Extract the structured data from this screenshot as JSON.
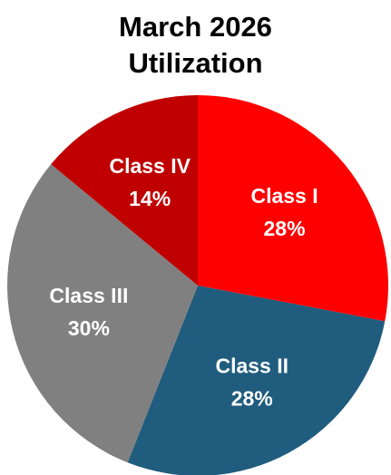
{
  "chart_data": {
    "type": "pie",
    "title": "March 2026 Utilization",
    "categories": [
      "Class I",
      "Class II",
      "Class III",
      "Class IV"
    ],
    "values": [
      28,
      28,
      30,
      14
    ],
    "value_labels": [
      "28%",
      "28%",
      "30%",
      "14%"
    ],
    "colors": [
      "#ff0000",
      "#1f5c7e",
      "#808080",
      "#c00000"
    ]
  }
}
